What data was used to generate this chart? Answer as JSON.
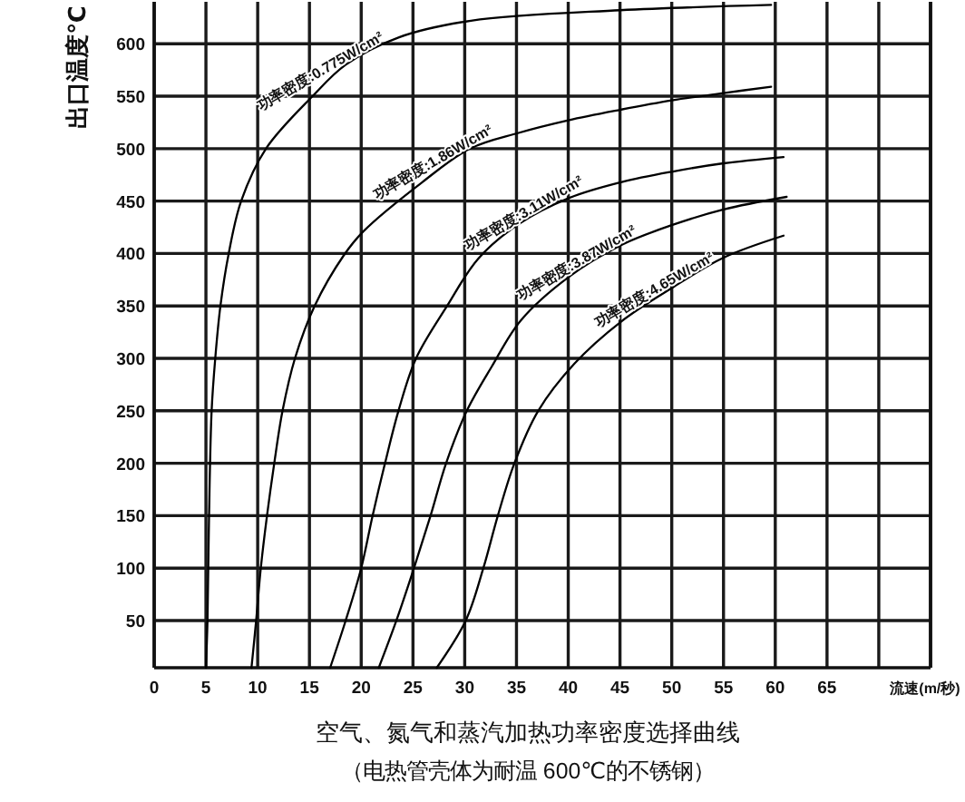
{
  "chart_data": {
    "type": "line",
    "title": "空气、氮气和蒸汽加热功率密度选择曲线",
    "subtitle": "（电热管壳体为耐温 600℃的不锈钢）",
    "xlabel": "流速(m/秒)",
    "ylabel": "出口温度℃",
    "xlim": [
      0,
      75
    ],
    "ylim": [
      5,
      640
    ],
    "xticks": [
      0,
      5,
      10,
      15,
      20,
      25,
      30,
      35,
      40,
      45,
      50,
      55,
      60,
      65,
      {
        "value": 70,
        "label": null
      },
      {
        "value": 75,
        "label": null
      }
    ],
    "yticks": [
      50,
      100,
      150,
      200,
      250,
      300,
      350,
      400,
      450,
      500,
      550,
      600
    ],
    "grid": true,
    "line_style": "solid",
    "series": [
      {
        "name": "功率密度:0.775W/cm²",
        "color": "#000000",
        "x": [
          5.0,
          5.15,
          5.3,
          5.55,
          5.9,
          6.4,
          7.2,
          8.4,
          10.8,
          15.3,
          18.5,
          23.6,
          30.6,
          45,
          59.6
        ],
        "values": [
          5,
          50,
          150,
          250,
          300,
          350,
          400,
          450,
          500,
          550,
          580,
          606,
          622,
          632,
          637
        ]
      },
      {
        "name": "功率密度:1.86W/cm²",
        "color": "#000000",
        "x": [
          9.4,
          9.85,
          10.3,
          10.9,
          11.6,
          12.4,
          13.6,
          15.5,
          18.3,
          20.2,
          25.9,
          30.5,
          35.2,
          40,
          45,
          50,
          55,
          59.6
        ],
        "values": [
          5,
          50,
          100,
          150,
          200,
          250,
          300,
          350,
          398,
          421,
          468,
          500,
          515,
          527,
          537,
          546,
          553,
          559
        ]
      },
      {
        "name": "功率密度:3.11W/cm²",
        "color": "#000000",
        "x": [
          17.0,
          18.5,
          20.0,
          21.1,
          22.3,
          23.6,
          25.3,
          28.3,
          31.3,
          35.2,
          40.1,
          45.1,
          50,
          55,
          60.8
        ],
        "values": [
          5,
          50,
          100,
          150,
          200,
          250,
          300,
          350,
          395,
          428,
          453,
          468,
          478,
          486,
          492
        ]
      },
      {
        "name": "功率密度:3.87W/cm²",
        "color": "#000000",
        "x": [
          21.7,
          23.4,
          25.1,
          26.7,
          28.2,
          30.2,
          32.6,
          35.4,
          40.1,
          45.1,
          50,
          55,
          61.1
        ],
        "values": [
          5,
          50,
          100,
          150,
          200,
          250,
          292,
          336,
          378,
          408,
          427,
          442,
          454
        ]
      },
      {
        "name": "功率密度:4.65W/cm²",
        "color": "#000000",
        "x": [
          27.3,
          30.1,
          31.8,
          33.2,
          34.8,
          37.1,
          40.6,
          45.1,
          50,
          55,
          60.8
        ],
        "values": [
          5,
          50,
          100,
          150,
          200,
          250,
          295,
          335,
          367,
          396,
          417
        ]
      }
    ]
  }
}
